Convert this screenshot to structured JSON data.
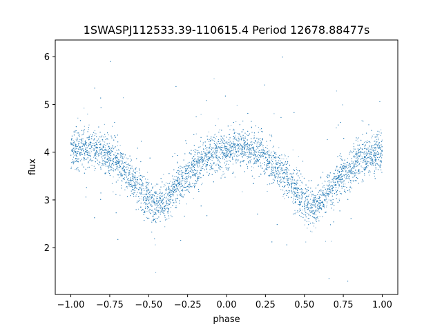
{
  "chart_data": {
    "type": "scatter",
    "title": "1SWASPJ112533.39-110615.4 Period 12678.88477s",
    "xlabel": "phase",
    "ylabel": "flux",
    "xlim": [
      -1.1,
      1.1
    ],
    "ylim": [
      1.02,
      6.35
    ],
    "xticks": [
      -1.0,
      -0.75,
      -0.5,
      -0.25,
      0.0,
      0.25,
      0.5,
      0.75,
      1.0
    ],
    "xtick_labels": [
      "−1.00",
      "−0.75",
      "−0.50",
      "−0.25",
      "0.00",
      "0.25",
      "0.50",
      "0.75",
      "1.00"
    ],
    "yticks": [
      2,
      3,
      4,
      5,
      6
    ],
    "ytick_labels": [
      "2",
      "3",
      "4",
      "5",
      "6"
    ],
    "grid": false,
    "legend": "none",
    "point_color": "#1f77b4",
    "series": [
      {
        "x": [
          -1.0,
          -0.9,
          -0.8,
          -0.7,
          -0.6,
          -0.5,
          -0.45,
          -0.4,
          -0.3,
          -0.2,
          -0.1,
          0.0,
          0.1,
          0.2,
          0.3,
          0.4,
          0.5,
          0.55,
          0.6,
          0.7,
          0.8,
          0.9,
          1.0
        ],
        "y": [
          4.05,
          4.08,
          4.02,
          3.8,
          3.45,
          3.0,
          2.85,
          2.95,
          3.35,
          3.7,
          3.95,
          4.05,
          4.1,
          4.0,
          3.75,
          3.4,
          3.0,
          2.85,
          2.95,
          3.35,
          3.7,
          3.9,
          4.0
        ]
      }
    ]
  }
}
